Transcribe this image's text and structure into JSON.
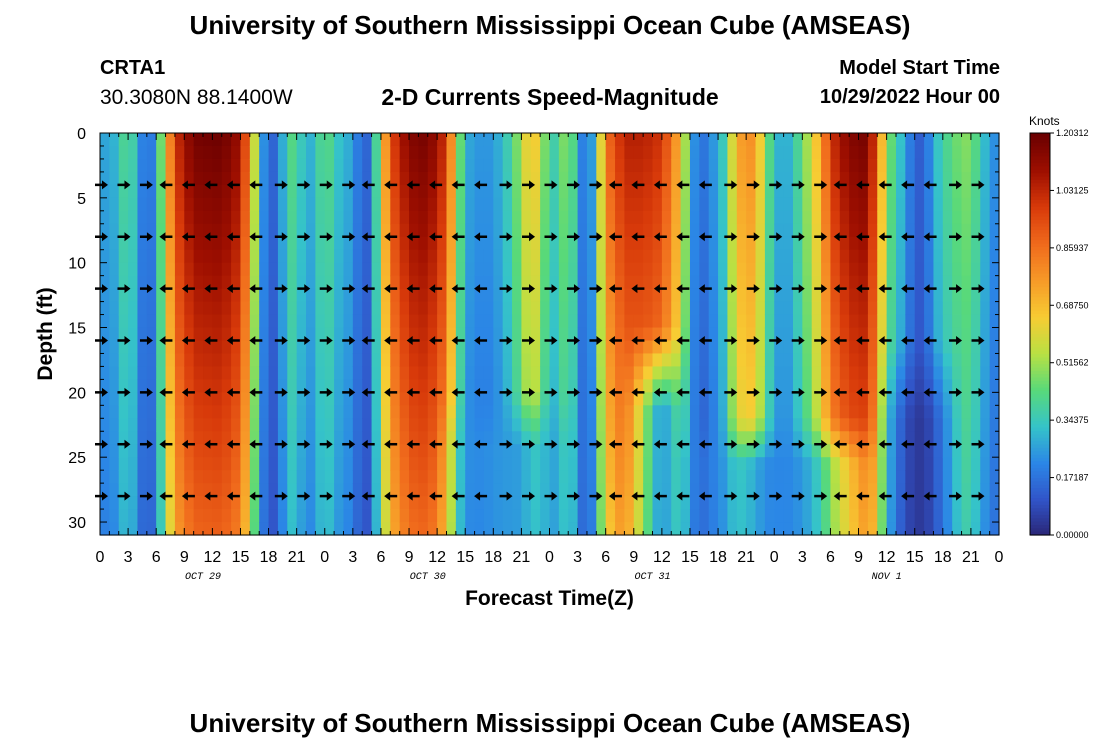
{
  "page": {
    "title": "University of Southern Mississippi Ocean Cube (AMSEAS)",
    "title_bottom": "University of Southern Mississippi Ocean Cube (AMSEAS)",
    "station_id": "CRTA1",
    "coordinates": "30.3080N  88.1400W",
    "subtitle": "2-D Currents Speed-Magnitude",
    "model_start_label": "Model Start Time",
    "model_start_value": "10/29/2022 Hour 00"
  },
  "chart_data": {
    "type": "heatmap",
    "title": "2-D Currents Speed-Magnitude",
    "xlabel": "Forecast Time(Z)",
    "ylabel": "Depth (ft)",
    "x_tick_labels": [
      "0",
      "3",
      "6",
      "9",
      "12",
      "15",
      "18",
      "21",
      "0",
      "3",
      "6",
      "9",
      "12",
      "15",
      "18",
      "21",
      "0",
      "3",
      "6",
      "9",
      "12",
      "15",
      "18",
      "21",
      "0",
      "3",
      "6",
      "9",
      "12",
      "15",
      "18",
      "21",
      "0"
    ],
    "x_range_hours": [
      0,
      96
    ],
    "day_labels": [
      {
        "label": "OCT 29",
        "hour": 11
      },
      {
        "label": "OCT 30",
        "hour": 35
      },
      {
        "label": "OCT 31",
        "hour": 59
      },
      {
        "label": "NOV 1",
        "hour": 84
      }
    ],
    "y_ticks": [
      0,
      5,
      10,
      15,
      20,
      25,
      30
    ],
    "y_range_ft": [
      0,
      31
    ],
    "colorbar": {
      "unit": "Knots",
      "labels": [
        "1.20312",
        "1.03125",
        "0.85937",
        "0.68750",
        "0.51562",
        "0.34375",
        "0.17187",
        "0.00000"
      ],
      "colors": [
        "#6b0000",
        "#9e0f00",
        "#d83a0a",
        "#f06a1c",
        "#f79a28",
        "#f7cc33",
        "#b9e043",
        "#58d97a",
        "#35c3c9",
        "#2b86e6",
        "#3154c8",
        "#2a2474"
      ]
    },
    "surface_speed_profile": [
      {
        "hour": 0,
        "speed": 0.3
      },
      {
        "hour": 1,
        "speed": 0.25
      },
      {
        "hour": 2,
        "speed": 0.35
      },
      {
        "hour": 3,
        "speed": 0.45
      },
      {
        "hour": 4,
        "speed": 0.3
      },
      {
        "hour": 5,
        "speed": 0.12
      },
      {
        "hour": 6,
        "speed": 0.28
      },
      {
        "hour": 7,
        "speed": 0.65
      },
      {
        "hour": 8,
        "speed": 1.0
      },
      {
        "hour": 10,
        "speed": 1.18
      },
      {
        "hour": 13,
        "speed": 1.2
      },
      {
        "hour": 15,
        "speed": 1.1
      },
      {
        "hour": 16,
        "speed": 0.8
      },
      {
        "hour": 17,
        "speed": 0.35
      },
      {
        "hour": 18,
        "speed": 0.12
      },
      {
        "hour": 19,
        "speed": 0.18
      },
      {
        "hour": 20,
        "speed": 0.4
      },
      {
        "hour": 21,
        "speed": 0.45
      },
      {
        "hour": 22,
        "speed": 0.25
      },
      {
        "hour": 23,
        "speed": 0.35
      },
      {
        "hour": 24,
        "speed": 0.45
      },
      {
        "hour": 25,
        "speed": 0.38
      },
      {
        "hour": 26,
        "speed": 0.28
      },
      {
        "hour": 27,
        "speed": 0.3
      },
      {
        "hour": 28,
        "speed": 0.1
      },
      {
        "hour": 29,
        "speed": 0.2
      },
      {
        "hour": 30,
        "speed": 0.6
      },
      {
        "hour": 31,
        "speed": 0.95
      },
      {
        "hour": 33,
        "speed": 1.15
      },
      {
        "hour": 35,
        "speed": 1.18
      },
      {
        "hour": 37,
        "speed": 1.0
      },
      {
        "hour": 38,
        "speed": 0.6
      },
      {
        "hour": 39,
        "speed": 0.3
      },
      {
        "hour": 40,
        "speed": 0.25
      },
      {
        "hour": 42,
        "speed": 0.25
      },
      {
        "hour": 44,
        "speed": 0.4
      },
      {
        "hour": 46,
        "speed": 0.7
      },
      {
        "hour": 47,
        "speed": 0.6
      },
      {
        "hour": 48,
        "speed": 0.35
      },
      {
        "hour": 49,
        "speed": 0.4
      },
      {
        "hour": 50,
        "speed": 0.55
      },
      {
        "hour": 51,
        "speed": 0.3
      },
      {
        "hour": 52,
        "speed": 0.12
      },
      {
        "hour": 53,
        "speed": 0.4
      },
      {
        "hour": 54,
        "speed": 0.85
      },
      {
        "hour": 56,
        "speed": 1.05
      },
      {
        "hour": 58,
        "speed": 1.05
      },
      {
        "hour": 60,
        "speed": 1.0
      },
      {
        "hour": 62,
        "speed": 0.7
      },
      {
        "hour": 63,
        "speed": 0.35
      },
      {
        "hour": 64,
        "speed": 0.12
      },
      {
        "hour": 65,
        "speed": 0.25
      },
      {
        "hour": 66,
        "speed": 0.25
      },
      {
        "hour": 67,
        "speed": 0.45
      },
      {
        "hour": 68,
        "speed": 0.75
      },
      {
        "hour": 70,
        "speed": 0.8
      },
      {
        "hour": 71,
        "speed": 0.5
      },
      {
        "hour": 72,
        "speed": 0.35
      },
      {
        "hour": 73,
        "speed": 0.25
      },
      {
        "hour": 75,
        "speed": 0.45
      },
      {
        "hour": 77,
        "speed": 0.75
      },
      {
        "hour": 78,
        "speed": 1.0
      },
      {
        "hour": 80,
        "speed": 1.15
      },
      {
        "hour": 82,
        "speed": 1.18
      },
      {
        "hour": 83,
        "speed": 0.9
      },
      {
        "hour": 84,
        "speed": 0.5
      },
      {
        "hour": 85,
        "speed": 0.4
      },
      {
        "hour": 86,
        "speed": 0.25
      },
      {
        "hour": 87,
        "speed": 0.15
      },
      {
        "hour": 88,
        "speed": 0.12
      },
      {
        "hour": 89,
        "speed": 0.3
      },
      {
        "hour": 91,
        "speed": 0.45
      },
      {
        "hour": 93,
        "speed": 0.5
      },
      {
        "hour": 94,
        "speed": 0.35
      },
      {
        "hour": 96,
        "speed": 0.2
      }
    ],
    "depth_modifiers": [
      {
        "hour_from": 83,
        "hour_to": 92,
        "depth_from": 16,
        "depth_to": 31,
        "speed": 0.05
      },
      {
        "hour_from": 56,
        "hour_to": 64,
        "depth_from": 15,
        "depth_to": 31,
        "speed": 0.22
      },
      {
        "hour_from": 36,
        "hour_to": 52,
        "depth_from": 20,
        "depth_to": 31,
        "speed": 0.25
      },
      {
        "hour_from": 60,
        "hour_to": 84,
        "depth_from": 22,
        "depth_to": 31,
        "speed": 0.22
      }
    ],
    "vector_depths_ft": [
      4,
      8,
      12,
      16,
      20,
      24,
      28
    ],
    "vector_directions": [
      {
        "hour_from": 0,
        "hour_to": 5,
        "direction": "east"
      },
      {
        "hour_from": 5,
        "hour_to": 18,
        "direction": "west"
      },
      {
        "hour_from": 18,
        "hour_to": 28,
        "direction": "east"
      },
      {
        "hour_from": 28,
        "hour_to": 42,
        "direction": "west"
      },
      {
        "hour_from": 42,
        "hour_to": 54,
        "direction": "east"
      },
      {
        "hour_from": 54,
        "hour_to": 66,
        "direction": "west"
      },
      {
        "hour_from": 66,
        "hour_to": 78,
        "direction": "east"
      },
      {
        "hour_from": 78,
        "hour_to": 90,
        "direction": "west"
      },
      {
        "hour_from": 90,
        "hour_to": 96,
        "direction": "east"
      }
    ],
    "vector_spacing_hours": 2.4
  }
}
